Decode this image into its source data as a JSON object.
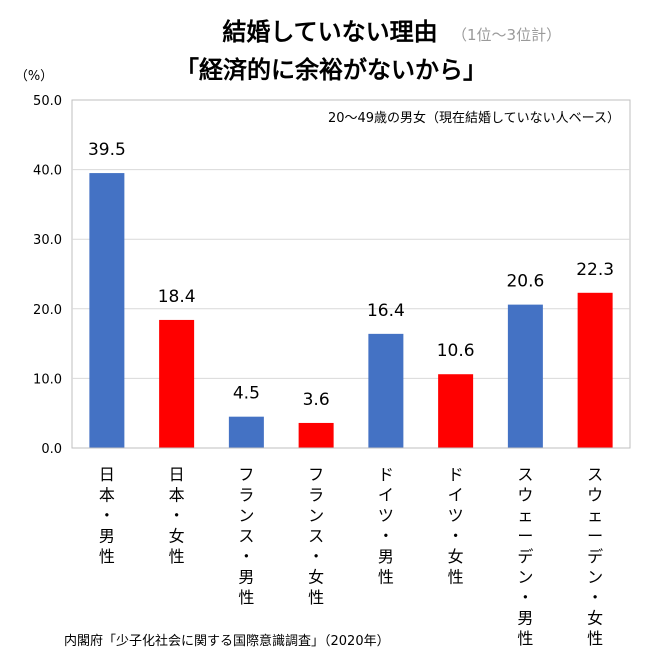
{
  "chart_data": {
    "type": "bar",
    "title_line1": "結婚していない理由",
    "title_note": "（1位～3位計）",
    "title_line2": "「経済的に余裕がないから」",
    "unit": "（%）",
    "annotation": "20～49歳の男女（現在結婚していない人ベース）",
    "source": "内閣府「少子化社会に関する国際意識調査」（2020年）",
    "ylim": [
      0,
      50
    ],
    "yticks": [
      "0.0",
      "10.0",
      "20.0",
      "30.0",
      "40.0",
      "50.0"
    ],
    "grid": true,
    "categories": [
      "日本・男性",
      "日本・女性",
      "フランス・男性",
      "フランス・女性",
      "ドイツ・男性",
      "ドイツ・女性",
      "スウェーデン・男性",
      "スウェーデン・女性"
    ],
    "values": [
      39.5,
      18.4,
      4.5,
      3.6,
      16.4,
      10.6,
      20.6,
      22.3
    ],
    "value_labels": [
      "39.5",
      "18.4",
      "4.5",
      "3.6",
      "16.4",
      "10.6",
      "20.6",
      "22.3"
    ],
    "colors": [
      "#4472c4",
      "#ff0000",
      "#4472c4",
      "#ff0000",
      "#4472c4",
      "#ff0000",
      "#4472c4",
      "#ff0000"
    ]
  }
}
